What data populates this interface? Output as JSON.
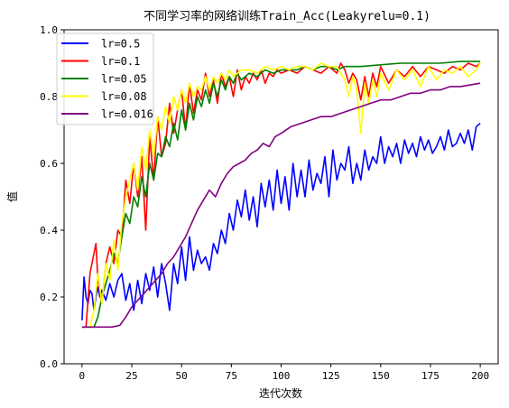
{
  "chart_data": {
    "type": "line",
    "title": "不同学习率的网络训练Train_Acc(Leakyrelu=0.1)",
    "xlabel": "迭代次数",
    "ylabel": "值",
    "xlim": [
      -9,
      209
    ],
    "ylim": [
      0.0,
      1.0
    ],
    "xticks": [
      "0",
      "25",
      "50",
      "75",
      "100",
      "125",
      "150",
      "175",
      "200"
    ],
    "yticks": [
      "0.0",
      "0.2",
      "0.4",
      "0.6",
      "0.8",
      "1.0"
    ],
    "grid": false,
    "legend_position": "top-left",
    "series": [
      {
        "name": "lr=0.5",
        "color": "#0000ff",
        "x": [
          0,
          1,
          2,
          3,
          4,
          5,
          6,
          7,
          8,
          9,
          10,
          12,
          14,
          16,
          18,
          20,
          22,
          24,
          26,
          28,
          30,
          32,
          34,
          36,
          38,
          40,
          42,
          44,
          46,
          48,
          50,
          52,
          54,
          56,
          58,
          60,
          62,
          64,
          66,
          68,
          70,
          72,
          74,
          76,
          78,
          80,
          82,
          84,
          86,
          88,
          90,
          92,
          94,
          96,
          98,
          100,
          102,
          104,
          106,
          108,
          110,
          112,
          114,
          116,
          118,
          120,
          122,
          124,
          126,
          128,
          130,
          132,
          134,
          136,
          138,
          140,
          142,
          144,
          146,
          148,
          150,
          152,
          154,
          156,
          158,
          160,
          162,
          164,
          166,
          168,
          170,
          172,
          174,
          176,
          178,
          180,
          182,
          184,
          186,
          188,
          190,
          192,
          194,
          196,
          198,
          200
        ],
        "y": [
          0.13,
          0.26,
          0.2,
          0.18,
          0.22,
          0.21,
          0.16,
          0.2,
          0.23,
          0.2,
          0.22,
          0.19,
          0.24,
          0.2,
          0.25,
          0.27,
          0.19,
          0.24,
          0.16,
          0.25,
          0.18,
          0.27,
          0.22,
          0.29,
          0.2,
          0.3,
          0.24,
          0.16,
          0.3,
          0.24,
          0.35,
          0.25,
          0.38,
          0.28,
          0.34,
          0.3,
          0.32,
          0.28,
          0.36,
          0.33,
          0.4,
          0.36,
          0.45,
          0.4,
          0.49,
          0.44,
          0.52,
          0.43,
          0.5,
          0.41,
          0.54,
          0.47,
          0.55,
          0.46,
          0.58,
          0.48,
          0.56,
          0.46,
          0.6,
          0.5,
          0.58,
          0.5,
          0.61,
          0.52,
          0.57,
          0.54,
          0.62,
          0.5,
          0.64,
          0.55,
          0.6,
          0.58,
          0.65,
          0.54,
          0.6,
          0.55,
          0.64,
          0.58,
          0.62,
          0.6,
          0.68,
          0.6,
          0.65,
          0.62,
          0.66,
          0.6,
          0.67,
          0.63,
          0.66,
          0.62,
          0.68,
          0.64,
          0.67,
          0.63,
          0.65,
          0.68,
          0.64,
          0.7,
          0.65,
          0.66,
          0.69,
          0.66,
          0.7,
          0.64,
          0.71,
          0.72
        ]
      },
      {
        "name": "lr=0.1",
        "color": "#ff0000",
        "x": [
          0,
          2,
          4,
          6,
          7,
          8,
          10,
          12,
          14,
          16,
          18,
          20,
          22,
          24,
          26,
          28,
          30,
          32,
          34,
          36,
          38,
          40,
          42,
          44,
          46,
          48,
          50,
          52,
          54,
          56,
          58,
          60,
          62,
          64,
          66,
          68,
          70,
          72,
          74,
          76,
          78,
          80,
          82,
          84,
          86,
          88,
          90,
          92,
          94,
          96,
          98,
          100,
          104,
          108,
          112,
          116,
          120,
          124,
          128,
          130,
          132,
          134,
          136,
          138,
          140,
          142,
          144,
          146,
          148,
          150,
          154,
          158,
          162,
          166,
          170,
          174,
          178,
          182,
          186,
          190,
          194,
          198,
          200
        ],
        "y": [
          0.11,
          0.11,
          0.27,
          0.33,
          0.36,
          0.25,
          0.18,
          0.3,
          0.35,
          0.3,
          0.4,
          0.38,
          0.55,
          0.48,
          0.6,
          0.5,
          0.62,
          0.4,
          0.68,
          0.55,
          0.74,
          0.62,
          0.66,
          0.78,
          0.69,
          0.76,
          0.82,
          0.7,
          0.84,
          0.75,
          0.82,
          0.79,
          0.87,
          0.8,
          0.85,
          0.78,
          0.87,
          0.83,
          0.86,
          0.8,
          0.88,
          0.82,
          0.86,
          0.84,
          0.87,
          0.85,
          0.88,
          0.84,
          0.87,
          0.86,
          0.88,
          0.87,
          0.88,
          0.87,
          0.89,
          0.88,
          0.87,
          0.89,
          0.87,
          0.9,
          0.88,
          0.84,
          0.87,
          0.85,
          0.79,
          0.86,
          0.8,
          0.87,
          0.83,
          0.89,
          0.84,
          0.88,
          0.86,
          0.89,
          0.86,
          0.89,
          0.88,
          0.87,
          0.89,
          0.88,
          0.9,
          0.89,
          0.9
        ]
      },
      {
        "name": "lr=0.05",
        "color": "#008000",
        "x": [
          0,
          2,
          4,
          6,
          8,
          10,
          12,
          14,
          16,
          18,
          20,
          22,
          24,
          26,
          28,
          30,
          32,
          34,
          36,
          38,
          40,
          42,
          44,
          46,
          48,
          50,
          52,
          54,
          56,
          58,
          60,
          62,
          64,
          66,
          68,
          70,
          72,
          74,
          76,
          78,
          80,
          84,
          88,
          92,
          96,
          100,
          104,
          108,
          112,
          116,
          120,
          124,
          128,
          132,
          136,
          140,
          150,
          160,
          170,
          180,
          190,
          200
        ],
        "y": [
          0.11,
          0.11,
          0.11,
          0.11,
          0.14,
          0.2,
          0.24,
          0.28,
          0.33,
          0.3,
          0.38,
          0.45,
          0.42,
          0.5,
          0.47,
          0.56,
          0.5,
          0.6,
          0.55,
          0.63,
          0.62,
          0.68,
          0.65,
          0.72,
          0.67,
          0.76,
          0.7,
          0.78,
          0.73,
          0.8,
          0.77,
          0.82,
          0.78,
          0.84,
          0.8,
          0.85,
          0.82,
          0.86,
          0.84,
          0.87,
          0.85,
          0.87,
          0.86,
          0.88,
          0.87,
          0.88,
          0.88,
          0.88,
          0.89,
          0.88,
          0.89,
          0.89,
          0.88,
          0.89,
          0.89,
          0.89,
          0.895,
          0.9,
          0.9,
          0.9,
          0.905,
          0.905
        ]
      },
      {
        "name": "lr=0.08",
        "color": "#ffff00",
        "x": [
          0,
          2,
          4,
          6,
          8,
          10,
          12,
          14,
          16,
          18,
          20,
          22,
          24,
          26,
          28,
          30,
          32,
          34,
          36,
          38,
          40,
          42,
          44,
          46,
          48,
          50,
          52,
          54,
          56,
          58,
          60,
          62,
          64,
          66,
          68,
          70,
          72,
          74,
          76,
          78,
          80,
          84,
          88,
          92,
          96,
          100,
          104,
          108,
          112,
          116,
          120,
          124,
          128,
          130,
          132,
          134,
          136,
          138,
          140,
          142,
          144,
          146,
          148,
          150,
          154,
          158,
          162,
          166,
          170,
          174,
          178,
          182,
          186,
          190,
          194,
          198,
          200
        ],
        "y": [
          0.11,
          0.11,
          0.11,
          0.16,
          0.27,
          0.18,
          0.3,
          0.25,
          0.37,
          0.28,
          0.42,
          0.5,
          0.55,
          0.6,
          0.52,
          0.65,
          0.58,
          0.7,
          0.62,
          0.74,
          0.7,
          0.77,
          0.72,
          0.8,
          0.76,
          0.82,
          0.78,
          0.84,
          0.8,
          0.83,
          0.82,
          0.86,
          0.82,
          0.86,
          0.84,
          0.87,
          0.85,
          0.88,
          0.86,
          0.87,
          0.88,
          0.88,
          0.87,
          0.89,
          0.88,
          0.89,
          0.88,
          0.89,
          0.89,
          0.88,
          0.9,
          0.89,
          0.89,
          0.87,
          0.85,
          0.8,
          0.86,
          0.82,
          0.69,
          0.84,
          0.78,
          0.85,
          0.8,
          0.87,
          0.82,
          0.88,
          0.85,
          0.88,
          0.83,
          0.89,
          0.85,
          0.88,
          0.87,
          0.89,
          0.86,
          0.88,
          0.9
        ]
      },
      {
        "name": "lr=0.016",
        "color": "#800080",
        "x": [
          0,
          5,
          10,
          15,
          19,
          22,
          25,
          28,
          31,
          34,
          37,
          40,
          43,
          46,
          49,
          52,
          55,
          58,
          61,
          64,
          67,
          70,
          73,
          76,
          79,
          82,
          85,
          88,
          91,
          94,
          97,
          100,
          105,
          110,
          115,
          120,
          125,
          130,
          135,
          140,
          145,
          150,
          155,
          160,
          165,
          170,
          175,
          180,
          185,
          190,
          195,
          200
        ],
        "y": [
          0.11,
          0.11,
          0.11,
          0.11,
          0.115,
          0.14,
          0.17,
          0.19,
          0.21,
          0.23,
          0.25,
          0.27,
          0.3,
          0.32,
          0.35,
          0.38,
          0.42,
          0.46,
          0.49,
          0.52,
          0.5,
          0.54,
          0.57,
          0.59,
          0.6,
          0.61,
          0.63,
          0.64,
          0.66,
          0.65,
          0.68,
          0.69,
          0.71,
          0.72,
          0.73,
          0.74,
          0.74,
          0.75,
          0.76,
          0.77,
          0.78,
          0.79,
          0.79,
          0.8,
          0.81,
          0.81,
          0.82,
          0.82,
          0.83,
          0.83,
          0.835,
          0.84
        ]
      }
    ]
  }
}
